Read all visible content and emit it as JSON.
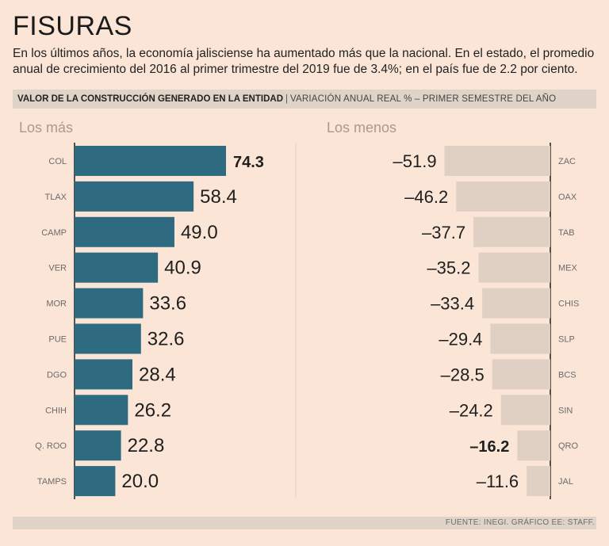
{
  "title": "FISURAS",
  "subtitle": "En los últimos años, la economía jalisciense ha aumentado más que la nacional. En el estado, el promedio anual de crecimiento del 2016 al primer trimestre del 2019 fue de 3.4%; en el país fue de 2.2 por ciento.",
  "header": {
    "main": "VALOR DE LA CONSTRUCCIÓN GENERADO EN LA ENTIDAD",
    "separator": "|",
    "sub": "VARIACIÓN ANUAL REAL % – PRIMER SEMESTRE DEL AÑO"
  },
  "footer": "FUENTE: INEGI. GRÁFICO EE: STAFF.",
  "colors": {
    "background": "#fbe5d6",
    "band": "#e0d4c8",
    "positive_bar": "#2e6b80",
    "negative_bar": "#e0d0c4",
    "axis_line": "#1f1f1f"
  },
  "chart_data": [
    {
      "type": "bar",
      "orientation": "horizontal",
      "title": "Los más",
      "categories": [
        "COL",
        "TLAX",
        "CAMP",
        "VER",
        "MOR",
        "PUE",
        "DGO",
        "CHIH",
        "Q. ROO",
        "TAMPS"
      ],
      "values": [
        74.3,
        58.4,
        49.0,
        40.9,
        33.6,
        32.6,
        28.4,
        26.2,
        22.8,
        20.0
      ],
      "labels": [
        "74.3",
        "58.4",
        "49.0",
        "40.9",
        "33.6",
        "32.6",
        "28.4",
        "26.2",
        "22.8",
        "20.0"
      ],
      "highlight": "COL",
      "xlim": [
        0,
        80
      ]
    },
    {
      "type": "bar",
      "orientation": "horizontal",
      "title": "Los menos",
      "categories": [
        "ZAC",
        "OAX",
        "TAB",
        "MEX",
        "CHIS",
        "SLP",
        "BCS",
        "SIN",
        "QRO",
        "JAL"
      ],
      "values": [
        -51.9,
        -46.2,
        -37.7,
        -35.2,
        -33.4,
        -29.4,
        -28.5,
        -24.2,
        -16.2,
        -11.6
      ],
      "labels": [
        "–51.9",
        "–46.2",
        "–37.7",
        "–35.2",
        "–33.4",
        "–29.4",
        "–28.5",
        "–24.2",
        "–16.2",
        "–11.6"
      ],
      "highlight": "QRO",
      "xlim": [
        -80,
        0
      ]
    }
  ]
}
